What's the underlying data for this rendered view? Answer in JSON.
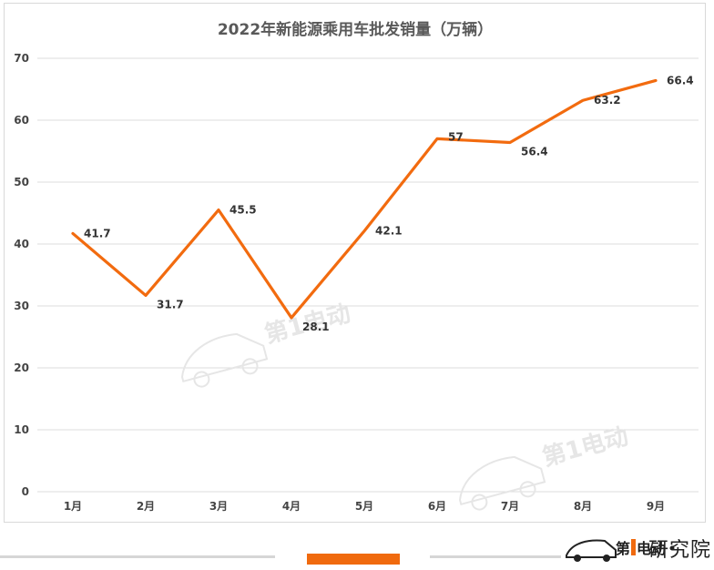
{
  "chart_data": {
    "type": "line",
    "title": "2022年新能源乘用车批发销量（万辆）",
    "categories": [
      "1月",
      "2月",
      "3月",
      "4月",
      "5月",
      "6月",
      "7月",
      "8月",
      "9月"
    ],
    "series": [
      {
        "values": [
          41.7,
          31.7,
          45.5,
          28.1,
          42.1,
          57,
          56.4,
          63.2,
          66.4
        ]
      }
    ],
    "data_labels": [
      "41.7",
      "31.7",
      "45.5",
      "28.1",
      "42.1",
      "57",
      "56.4",
      "63.2",
      "66.4"
    ],
    "ylim": [
      0,
      70
    ],
    "yticks": [
      0,
      10,
      20,
      30,
      40,
      50,
      60,
      70
    ],
    "grid": true,
    "line_color": "#f26b0f"
  },
  "footer": {
    "brand_text": "研究院",
    "accent_color": "#f06a0e"
  }
}
